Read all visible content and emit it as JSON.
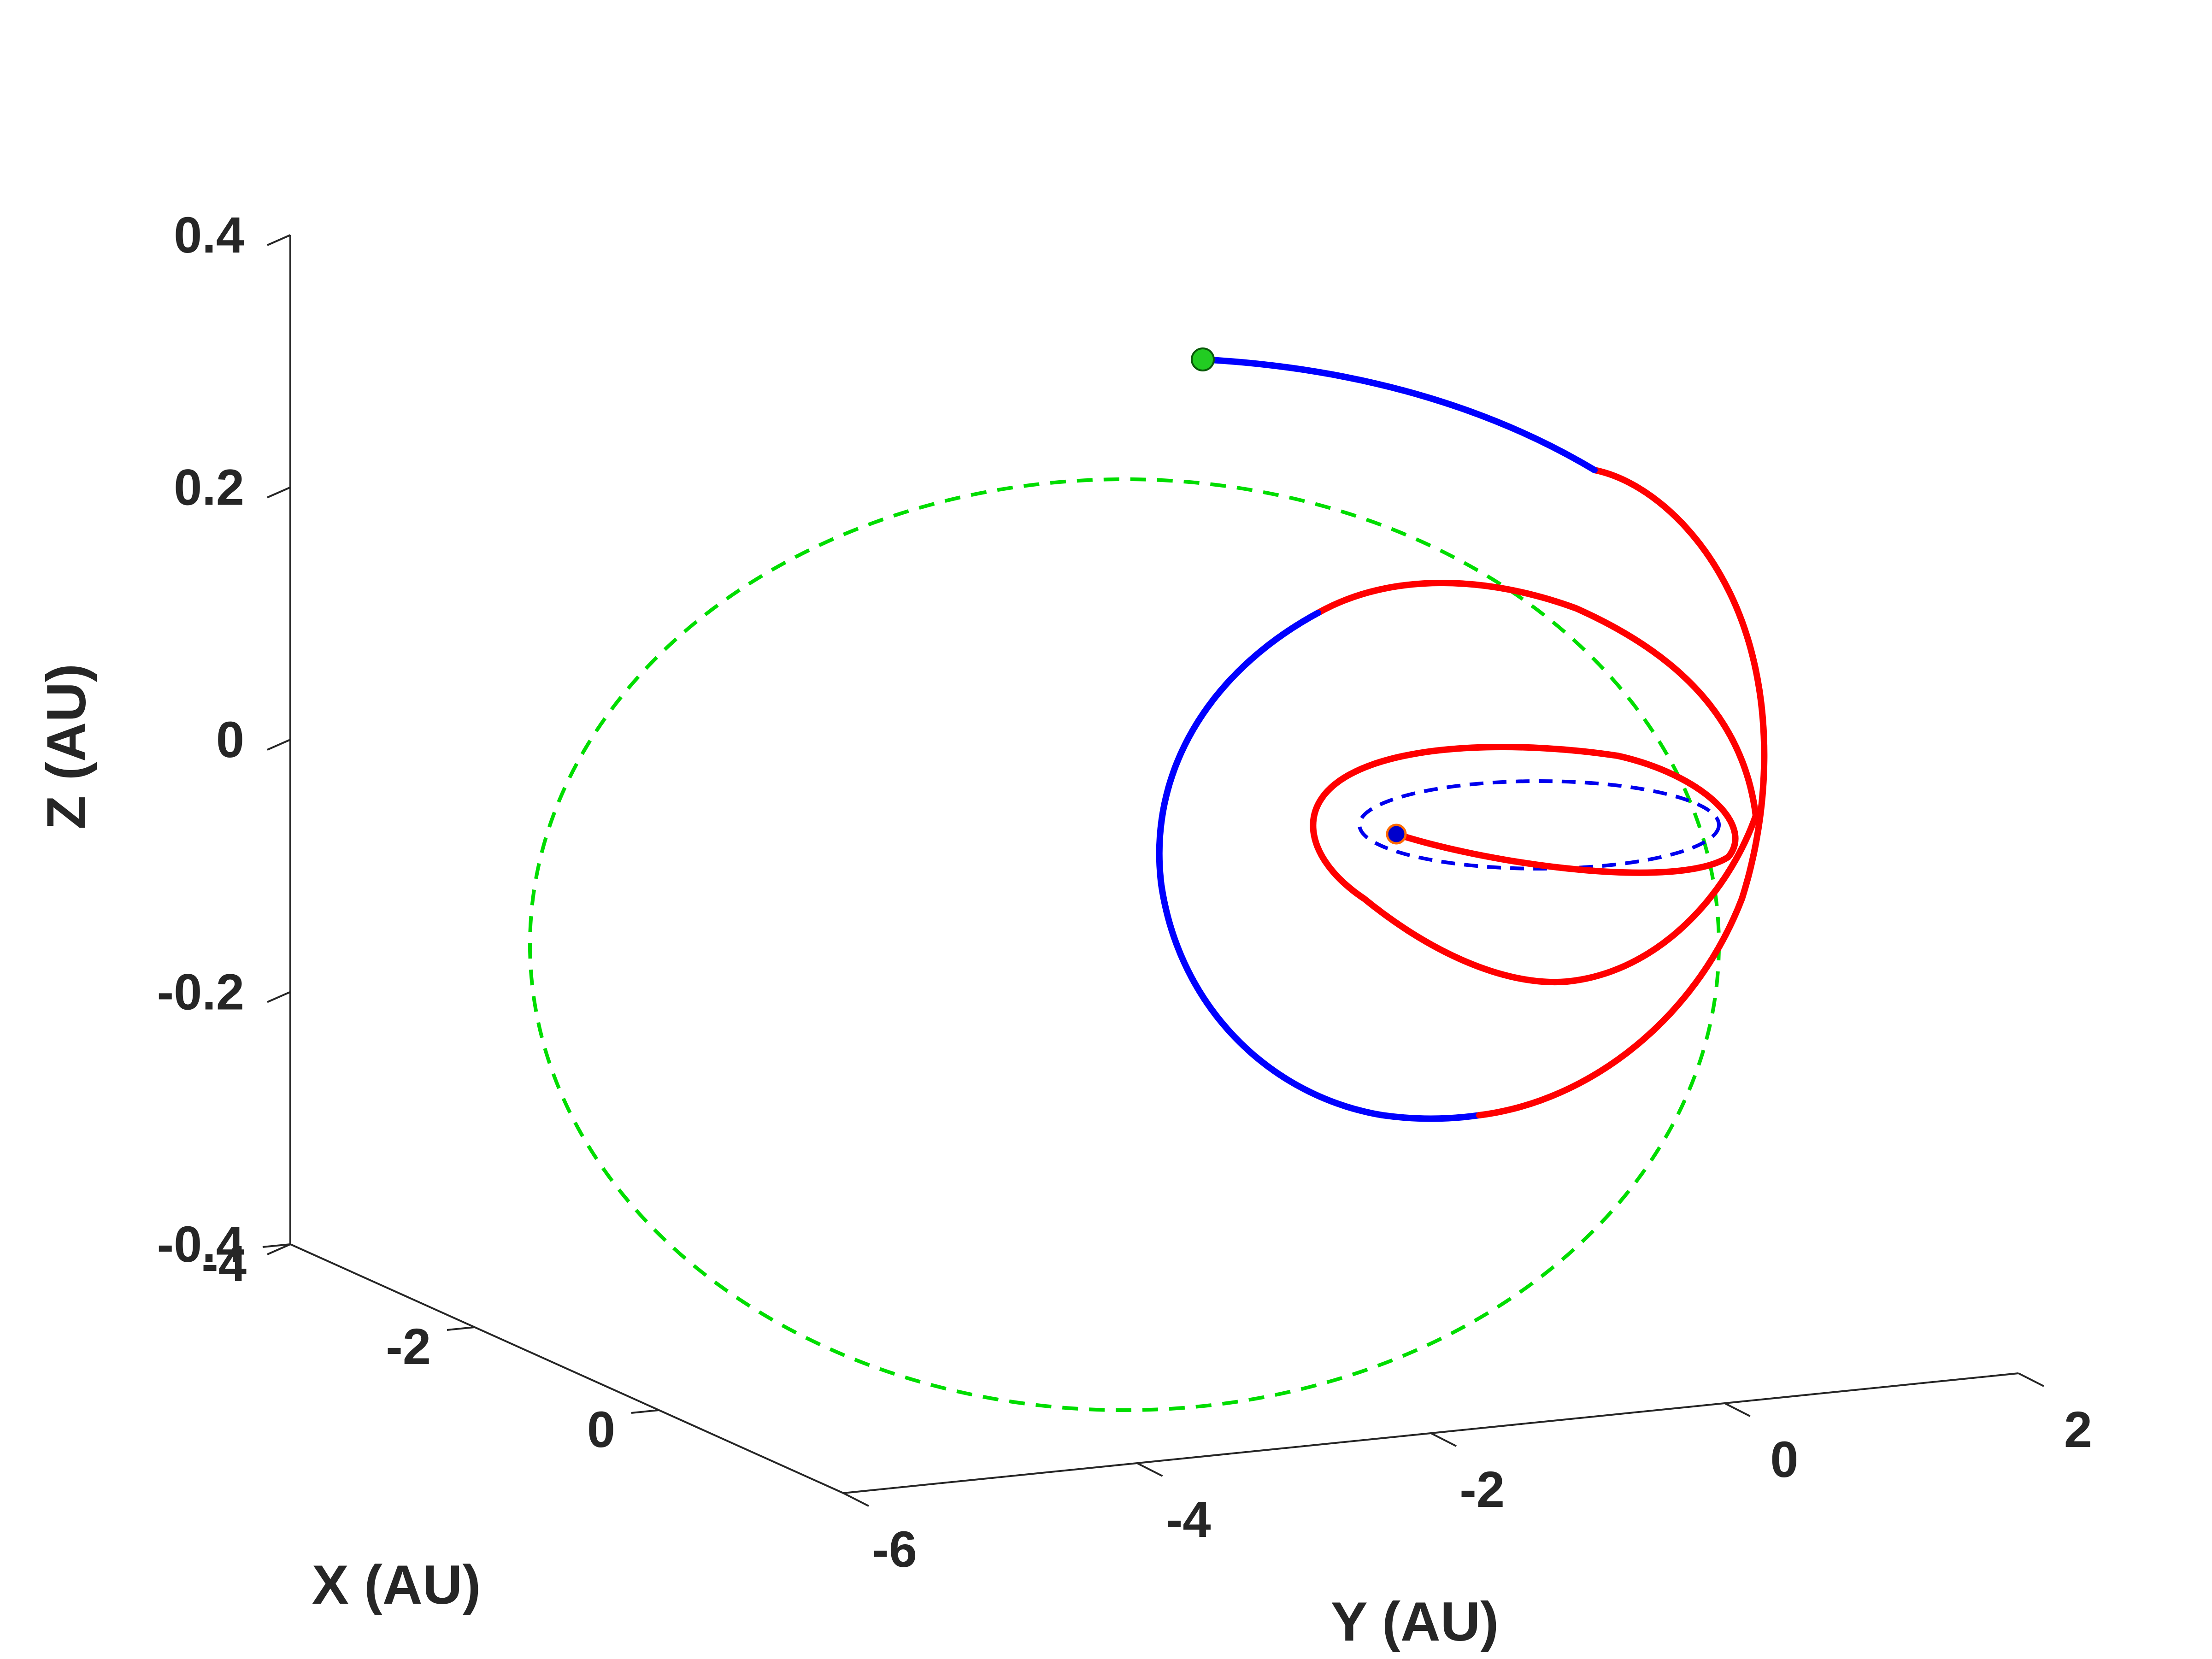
{
  "chart_data": {
    "type": "line",
    "projection": "3d",
    "title": "",
    "xlabel": "X (AU)",
    "ylabel": "Y (AU)",
    "zlabel": "Z (AU)",
    "xlim": [
      -4,
      2
    ],
    "ylim": [
      -6,
      2
    ],
    "zlim": [
      -0.4,
      0.4
    ],
    "xticks": [
      "-4",
      "-2",
      "0"
    ],
    "yticks": [
      "-6",
      "-4",
      "-2",
      "0",
      "2"
    ],
    "zticks": [
      "-0.4",
      "-0.2",
      "0",
      "0.2",
      "0.4"
    ],
    "grid": false,
    "legend": "none",
    "orbits": [
      {
        "body": "outer",
        "style": "dashed",
        "color": "#00dd00",
        "semi_major_axis_au": 5.2
      },
      {
        "body": "inner",
        "style": "dashed",
        "color": "#0000ee",
        "semi_major_axis_au": 1.0
      }
    ],
    "trajectory": {
      "segment_colors": [
        "#0000ff",
        "#ff0000",
        "#0000ff",
        "#ff0000"
      ],
      "start_marker": {
        "color": "#0000cc",
        "x": 0.0,
        "y": -1.0,
        "z": -0.08
      },
      "end_marker": {
        "color": "#22cc22",
        "x": -5.0,
        "y": -2.0,
        "z": 0.3
      }
    },
    "colors": {
      "axis": "#262626",
      "burn_arc": "#ff0000",
      "coast_arc": "#0000ff",
      "outer_orbit": "#00dd00",
      "inner_orbit": "#0000ee"
    }
  }
}
